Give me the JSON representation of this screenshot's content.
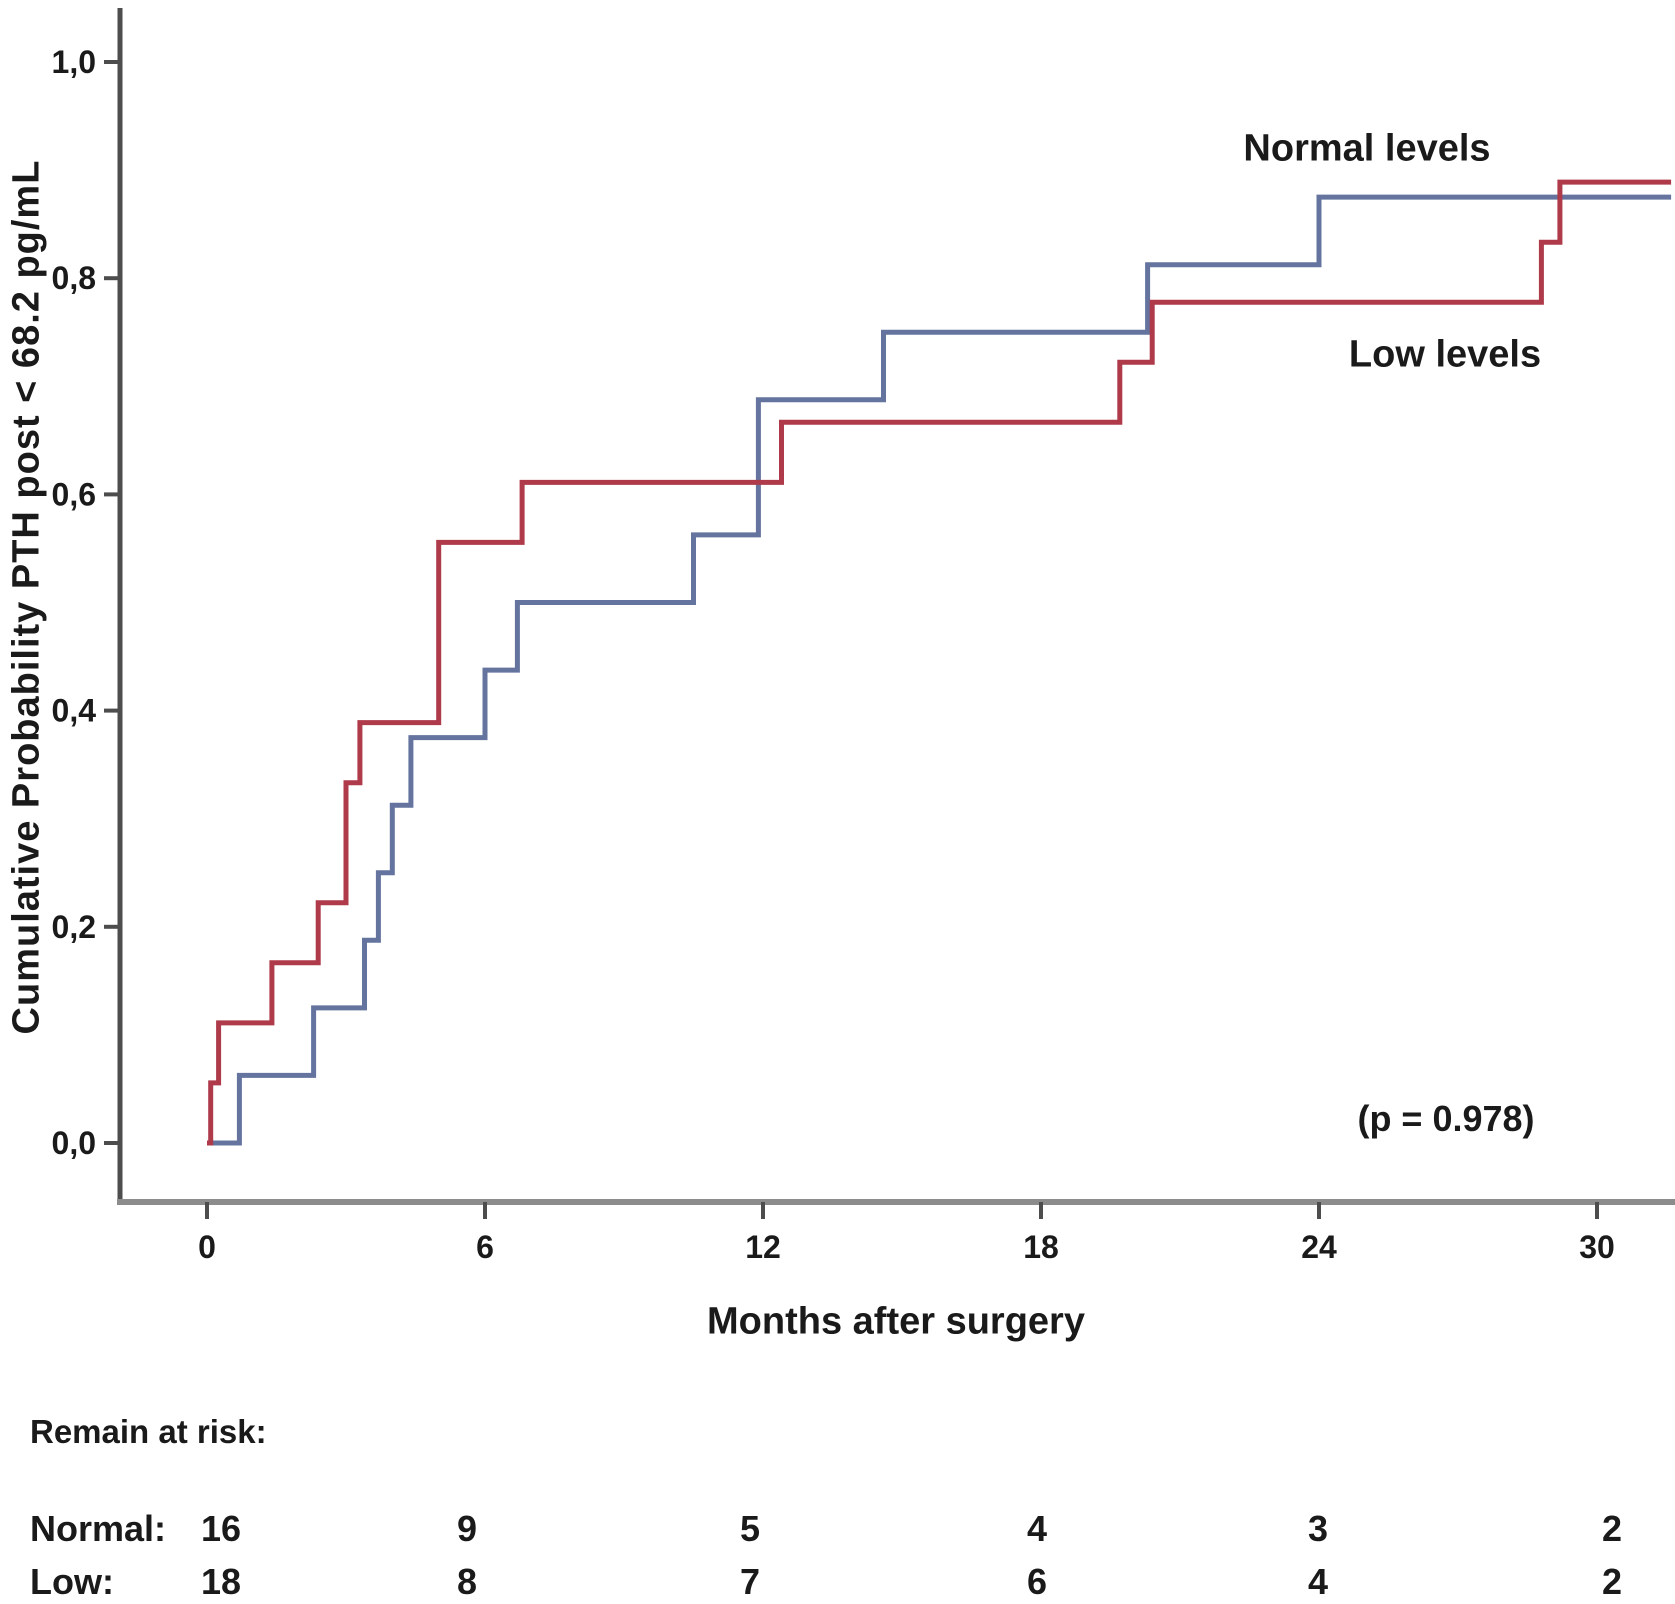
{
  "chart_data": {
    "type": "line",
    "subtype": "kaplan-meier-step",
    "title": "",
    "xlabel": "Months after surgery",
    "ylabel": "Cumulative Probability PTH post < 68.2 pg/mL",
    "annotation": "(p = 0.978)",
    "x_ticks": [
      0,
      6,
      12,
      18,
      24,
      30
    ],
    "y_ticks": [
      "0,0",
      "0,2",
      "0,4",
      "0,6",
      "0,8",
      "1,0"
    ],
    "xlim": [
      0,
      31.6
    ],
    "ylim": [
      0,
      1.05
    ],
    "grid": false,
    "legend_position": "inline-labels",
    "axis_colors": {
      "y_axis": "#4d4d4d",
      "x_axis": "#8c8c8c",
      "text": "#1a1a1a"
    },
    "series": [
      {
        "name": "Normal levels",
        "color": "#64749e",
        "start": [
          0,
          0
        ],
        "end_x": 31.6,
        "steps": [
          [
            0.7,
            0.0625
          ],
          [
            2.3,
            0.125
          ],
          [
            3.4,
            0.1875
          ],
          [
            3.7,
            0.25
          ],
          [
            4.0,
            0.3125
          ],
          [
            4.4,
            0.375
          ],
          [
            6.0,
            0.4375
          ],
          [
            6.7,
            0.5
          ],
          [
            10.5,
            0.5625
          ],
          [
            11.9,
            0.6875
          ],
          [
            14.6,
            0.75
          ],
          [
            20.3,
            0.8125
          ],
          [
            24.0,
            0.875
          ]
        ]
      },
      {
        "name": "Low levels",
        "color": "#ae3a4a",
        "start": [
          0,
          0
        ],
        "end_x": 31.6,
        "steps": [
          [
            0.08,
            0.0556
          ],
          [
            0.25,
            0.1111
          ],
          [
            1.4,
            0.1667
          ],
          [
            2.4,
            0.2222
          ],
          [
            3.0,
            0.3333
          ],
          [
            3.3,
            0.3889
          ],
          [
            5.0,
            0.5556
          ],
          [
            6.8,
            0.6111
          ],
          [
            12.4,
            0.6667
          ],
          [
            19.7,
            0.7222
          ],
          [
            20.4,
            0.7778
          ],
          [
            28.8,
            0.8333
          ],
          [
            29.2,
            0.8889
          ]
        ]
      }
    ],
    "risk_table": {
      "title": "Remain at risk:",
      "time_points": [
        0,
        6,
        12,
        18,
        24,
        30
      ],
      "rows": [
        {
          "label": "Normal:",
          "values": [
            "16",
            "9",
            "5",
            "4",
            "3",
            "2"
          ]
        },
        {
          "label": "Low:",
          "values": [
            "18",
            "8",
            "7",
            "6",
            "4",
            "2"
          ]
        }
      ]
    }
  }
}
